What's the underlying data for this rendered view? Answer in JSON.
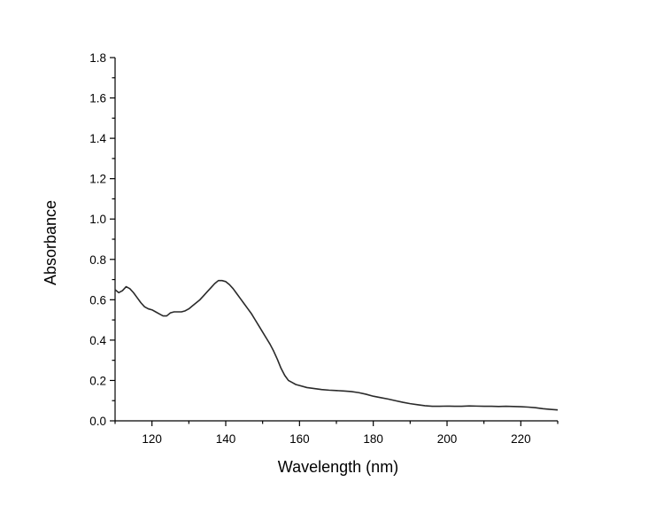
{
  "chart_data": {
    "type": "line",
    "title": "",
    "xlabel": "Wavelength (nm)",
    "ylabel": "Absorbance",
    "xlim": [
      110,
      230
    ],
    "ylim": [
      0.0,
      1.8
    ],
    "x_ticks": [
      120,
      140,
      160,
      180,
      200,
      220
    ],
    "x_tick_labels": [
      "120",
      "140",
      "160",
      "180",
      "200",
      "220"
    ],
    "y_ticks": [
      0.0,
      0.2,
      0.4,
      0.6,
      0.8,
      1.0,
      1.2,
      1.4,
      1.6,
      1.8
    ],
    "y_tick_labels": [
      "0.0",
      "0.2",
      "0.4",
      "0.6",
      "0.8",
      "1.0",
      "1.2",
      "1.4",
      "1.6",
      "1.8"
    ],
    "grid": false,
    "legend": "none",
    "line_color": "#2a2a2a",
    "series": [
      {
        "x": [
          110,
          111,
          112,
          113,
          114,
          115,
          116,
          117,
          118,
          119,
          120,
          121,
          122,
          123,
          124,
          125,
          126,
          127,
          128,
          129,
          130,
          131,
          132,
          133,
          134,
          135,
          136,
          137,
          138,
          139,
          140,
          141,
          142,
          143,
          144,
          145,
          146,
          147,
          148,
          149,
          150,
          151,
          152,
          153,
          154,
          155,
          156,
          157,
          158,
          159,
          160,
          162,
          164,
          166,
          168,
          170,
          172,
          174,
          176,
          178,
          180,
          182,
          184,
          186,
          188,
          190,
          192,
          194,
          196,
          198,
          200,
          202,
          204,
          206,
          208,
          210,
          212,
          214,
          216,
          218,
          220,
          222,
          224,
          226,
          228,
          230
        ],
        "y": [
          0.65,
          0.635,
          0.645,
          0.665,
          0.655,
          0.635,
          0.61,
          0.585,
          0.565,
          0.555,
          0.55,
          0.54,
          0.53,
          0.52,
          0.52,
          0.535,
          0.54,
          0.54,
          0.54,
          0.545,
          0.555,
          0.57,
          0.585,
          0.6,
          0.62,
          0.64,
          0.66,
          0.68,
          0.695,
          0.695,
          0.69,
          0.675,
          0.655,
          0.63,
          0.605,
          0.58,
          0.555,
          0.53,
          0.5,
          0.47,
          0.44,
          0.41,
          0.38,
          0.345,
          0.305,
          0.26,
          0.225,
          0.2,
          0.19,
          0.18,
          0.175,
          0.165,
          0.16,
          0.155,
          0.152,
          0.15,
          0.148,
          0.145,
          0.14,
          0.132,
          0.122,
          0.115,
          0.108,
          0.1,
          0.092,
          0.085,
          0.08,
          0.075,
          0.072,
          0.072,
          0.073,
          0.072,
          0.072,
          0.074,
          0.073,
          0.072,
          0.072,
          0.071,
          0.072,
          0.071,
          0.07,
          0.068,
          0.065,
          0.06,
          0.057,
          0.054
        ]
      }
    ]
  }
}
